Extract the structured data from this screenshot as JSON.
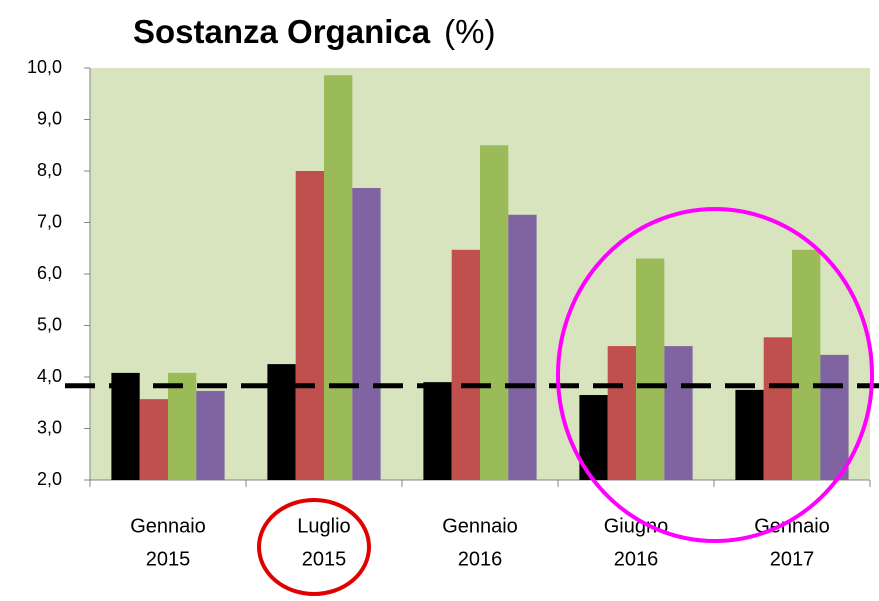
{
  "chart_data": {
    "type": "bar",
    "title": "Sostanza Organica",
    "unit": "(%)",
    "categories": [
      [
        "Gennaio",
        "2015"
      ],
      [
        "Luglio",
        "2015"
      ],
      [
        "Gennaio",
        "2016"
      ],
      [
        "Giugno",
        "2016"
      ],
      [
        "Gennaio",
        "2017"
      ]
    ],
    "series": [
      {
        "color": "#000000",
        "values": [
          4.08,
          4.25,
          3.9,
          3.65,
          3.75
        ]
      },
      {
        "color": "#c0504d",
        "values": [
          3.57,
          8.0,
          6.47,
          4.6,
          4.77
        ]
      },
      {
        "color": "#9bbb59",
        "values": [
          4.08,
          9.86,
          8.5,
          6.3,
          6.47
        ]
      },
      {
        "color": "#8064a2",
        "values": [
          3.73,
          7.67,
          7.15,
          4.6,
          4.43
        ]
      }
    ],
    "ylim": [
      2,
      10
    ],
    "yticks": [
      {
        "value": 2,
        "label": "2,0"
      },
      {
        "value": 3,
        "label": "3,0"
      },
      {
        "value": 4,
        "label": "4,0"
      },
      {
        "value": 5,
        "label": "5,0"
      },
      {
        "value": 6,
        "label": "6,0"
      },
      {
        "value": 7,
        "label": "7,0"
      },
      {
        "value": 8,
        "label": "8,0"
      },
      {
        "value": 9,
        "label": "9,0"
      },
      {
        "value": 10,
        "label": "10,0"
      }
    ],
    "reference_line": 3.83,
    "plot_background": "#d7e4bd"
  }
}
